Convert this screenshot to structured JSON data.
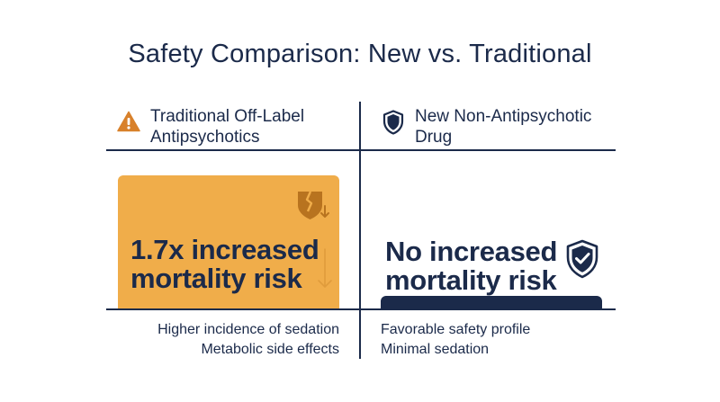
{
  "title": "Safety Comparison: New vs. Traditional",
  "colors": {
    "navy": "#1b2a4a",
    "accent_orange": "#f0ad4a",
    "icon_brown": "#b8731f",
    "warning_orange": "#d8812b"
  },
  "traditional": {
    "header_line1": "Traditional Off-Label",
    "header_line2": "Antipsychotics",
    "header_icon": "warning-triangle-icon",
    "stat_line1": "1.7x increased",
    "stat_line2": "mortality risk",
    "stat_icon": "broken-heart-icon",
    "trend_icon": "down-arrow-icon",
    "notes": [
      "Higher incidence of sedation",
      "Metabolic side effects"
    ]
  },
  "new_drug": {
    "header_line1": "New Non-Antipsychotic",
    "header_line2": "Drug",
    "header_icon": "shield-icon",
    "stat_line1": "No increased",
    "stat_line2": "mortality risk",
    "stat_icon": "shield-check-icon",
    "notes": [
      "Favorable safety profile",
      "Minimal sedation"
    ]
  }
}
